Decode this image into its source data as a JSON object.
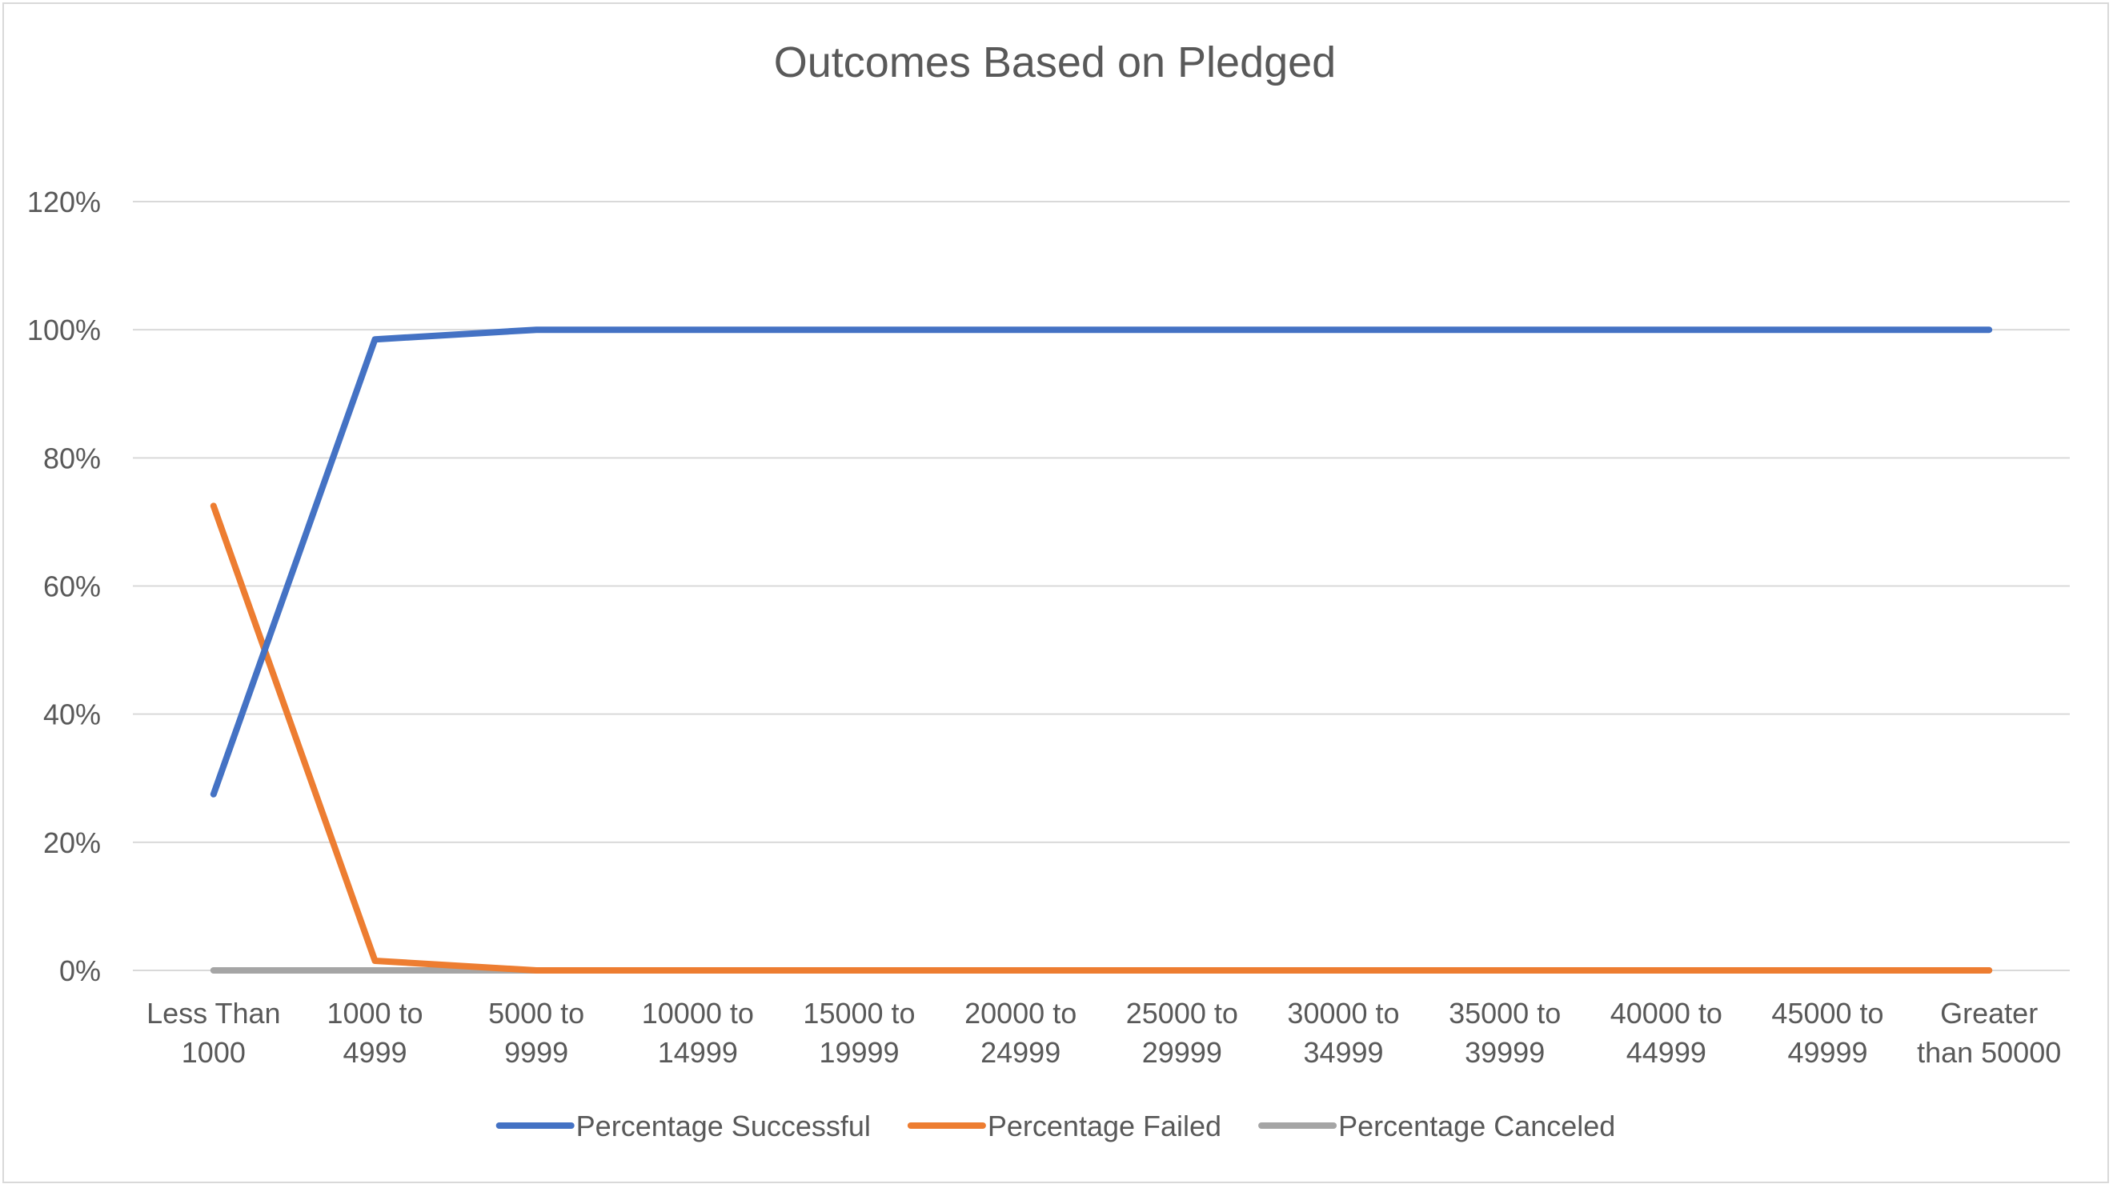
{
  "chart_data": {
    "type": "line",
    "title": "Outcomes Based on Pledged",
    "xlabel": "",
    "ylabel": "",
    "categories": [
      [
        "Less Than",
        "1000"
      ],
      [
        "1000 to",
        "4999"
      ],
      [
        "5000 to",
        "9999"
      ],
      [
        "10000 to",
        "14999"
      ],
      [
        "15000 to",
        "19999"
      ],
      [
        "20000 to",
        "24999"
      ],
      [
        "25000 to",
        "29999"
      ],
      [
        "30000 to",
        "34999"
      ],
      [
        "35000 to",
        "39999"
      ],
      [
        "40000 to",
        "44999"
      ],
      [
        "45000 to",
        "49999"
      ],
      [
        "Greater",
        "than 50000"
      ]
    ],
    "yticks": [
      "0%",
      "20%",
      "40%",
      "60%",
      "80%",
      "100%",
      "120%"
    ],
    "ylim": [
      0,
      1.2
    ],
    "grid": true,
    "legend_position": "bottom",
    "series": [
      {
        "name": "Percentage Successful",
        "color": "#4472c4",
        "values": [
          0.275,
          0.985,
          1,
          1,
          1,
          1,
          1,
          1,
          1,
          1,
          1,
          1
        ]
      },
      {
        "name": "Percentage Failed",
        "color": "#ed7d31",
        "values": [
          0.725,
          0.015,
          0,
          0,
          0,
          0,
          0,
          0,
          0,
          0,
          0,
          0
        ]
      },
      {
        "name": "Percentage Canceled",
        "color": "#a5a5a5",
        "values": [
          0,
          0,
          0,
          0,
          0,
          0,
          0,
          0,
          0,
          0,
          0,
          0
        ]
      }
    ]
  }
}
